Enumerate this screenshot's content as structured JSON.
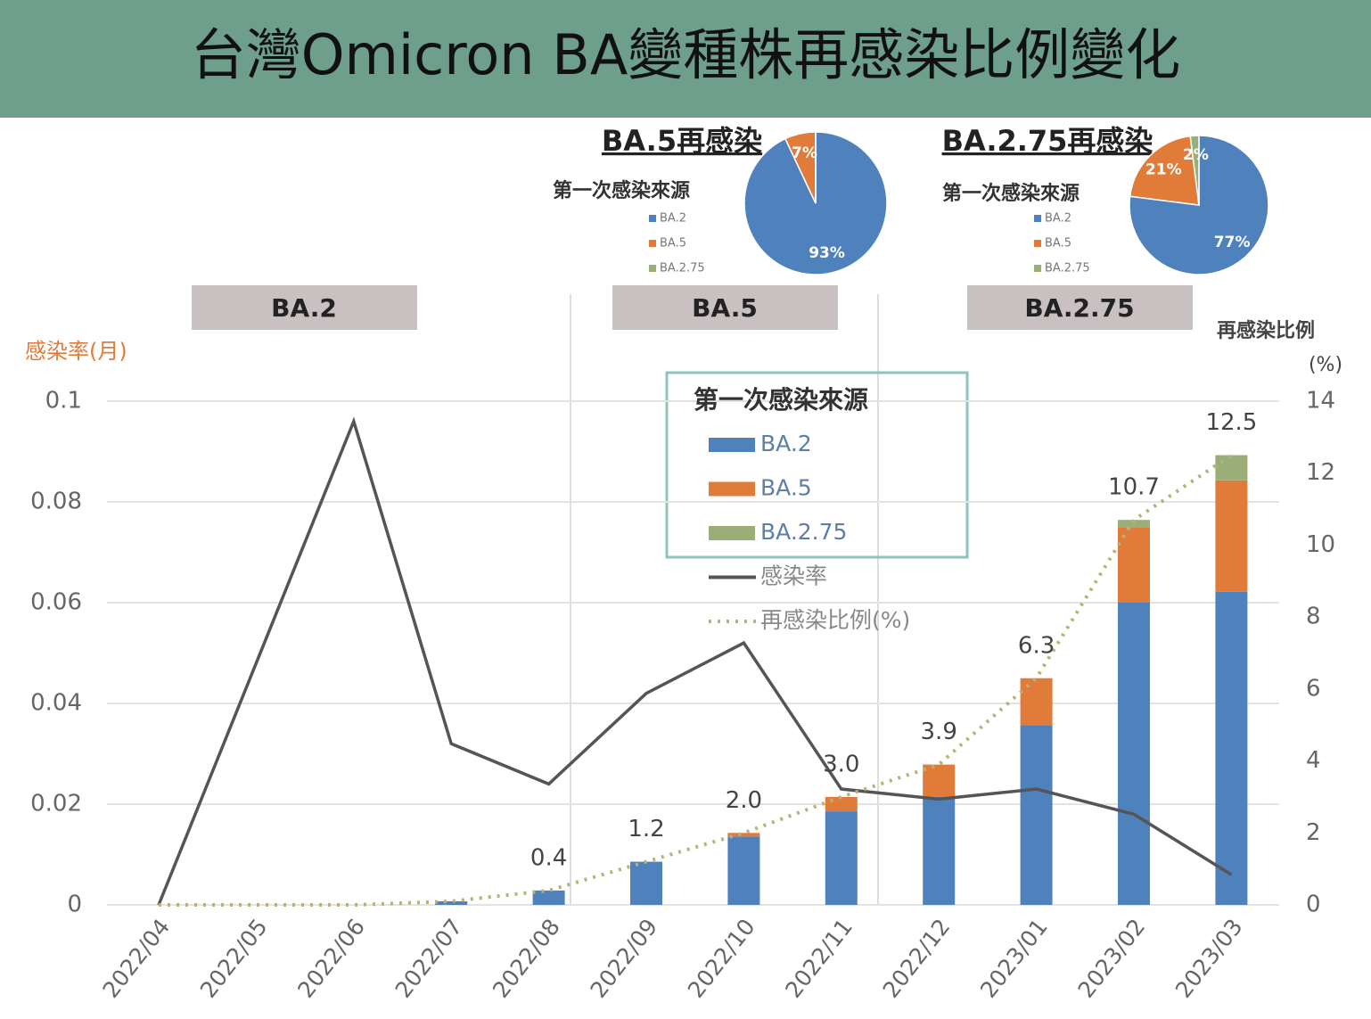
{
  "title": "台灣Omicron BA變種株再感染比例變化",
  "chart_data": [
    {
      "type": "bar",
      "categories": [
        "2022/04",
        "2022/05",
        "2022/06",
        "2022/07",
        "2022/08",
        "2022/09",
        "2022/10",
        "2022/11",
        "2022/12",
        "2023/01",
        "2023/02",
        "2023/03"
      ],
      "ylabel": "感染率(月)",
      "y2label": "再感染比例",
      "y2unit": "(%)",
      "ylim": [
        0,
        0.1
      ],
      "yticks": [
        0,
        0.02,
        0.04,
        0.06,
        0.08,
        0.1
      ],
      "y2lim": [
        0,
        14
      ],
      "y2ticks": [
        0,
        2,
        4,
        6,
        8,
        10,
        12,
        14
      ],
      "grid": true,
      "phases": [
        "BA.2",
        "BA.5",
        "BA.2.75"
      ],
      "legend_title": "第一次感染來源",
      "series": [
        {
          "name": "BA.2",
          "type": "bar",
          "axis": "y2",
          "color": "#4f81bd",
          "values": [
            0,
            0,
            0,
            0.1,
            0.4,
            1.2,
            1.9,
            2.6,
            3.0,
            5.0,
            8.4,
            8.7
          ]
        },
        {
          "name": "BA.5",
          "type": "bar",
          "axis": "y2",
          "color": "#e07b39",
          "values": [
            0,
            0,
            0,
            0,
            0,
            0,
            0.1,
            0.4,
            0.9,
            1.3,
            2.1,
            3.1
          ]
        },
        {
          "name": "BA.2.75",
          "type": "bar",
          "axis": "y2",
          "color": "#9bae78",
          "values": [
            0,
            0,
            0,
            0,
            0,
            0,
            0,
            0,
            0,
            0,
            0.2,
            0.7
          ]
        },
        {
          "name": "感染率",
          "type": "line",
          "color": "#555555",
          "values": [
            0,
            0.048,
            0.096,
            0.032,
            0.024,
            0.042,
            0.052,
            0.023,
            0.021,
            0.023,
            0.018,
            0.006
          ]
        },
        {
          "name": "再感染比例(%)",
          "type": "line",
          "style": "dotted",
          "axis": "y2",
          "color": "#b8b27a",
          "values": [
            0,
            0,
            0,
            0.1,
            0.4,
            1.2,
            2.0,
            3.0,
            3.9,
            6.3,
            10.7,
            12.5
          ],
          "value_labels": [
            null,
            null,
            null,
            null,
            "0.4",
            "1.2",
            "2.0",
            "3.0",
            "3.9",
            "6.3",
            "10.7",
            "12.5"
          ]
        }
      ]
    },
    {
      "type": "pie",
      "title": "BA.5再感染",
      "legend_title": "第一次感染來源",
      "categories": [
        "BA.2",
        "BA.5",
        "BA.2.75"
      ],
      "values": [
        93,
        7,
        0
      ],
      "value_labels": [
        "93%",
        "7%",
        null
      ],
      "colors": [
        "#4f81bd",
        "#e07b39",
        "#9bae78"
      ]
    },
    {
      "type": "pie",
      "title": "BA.2.75再感染",
      "legend_title": "第一次感染來源",
      "categories": [
        "BA.2",
        "BA.5",
        "BA.2.75"
      ],
      "values": [
        77,
        21,
        2
      ],
      "value_labels": [
        "77%",
        "21%",
        "2%"
      ],
      "colors": [
        "#4f81bd",
        "#e07b39",
        "#9bae78"
      ]
    }
  ]
}
